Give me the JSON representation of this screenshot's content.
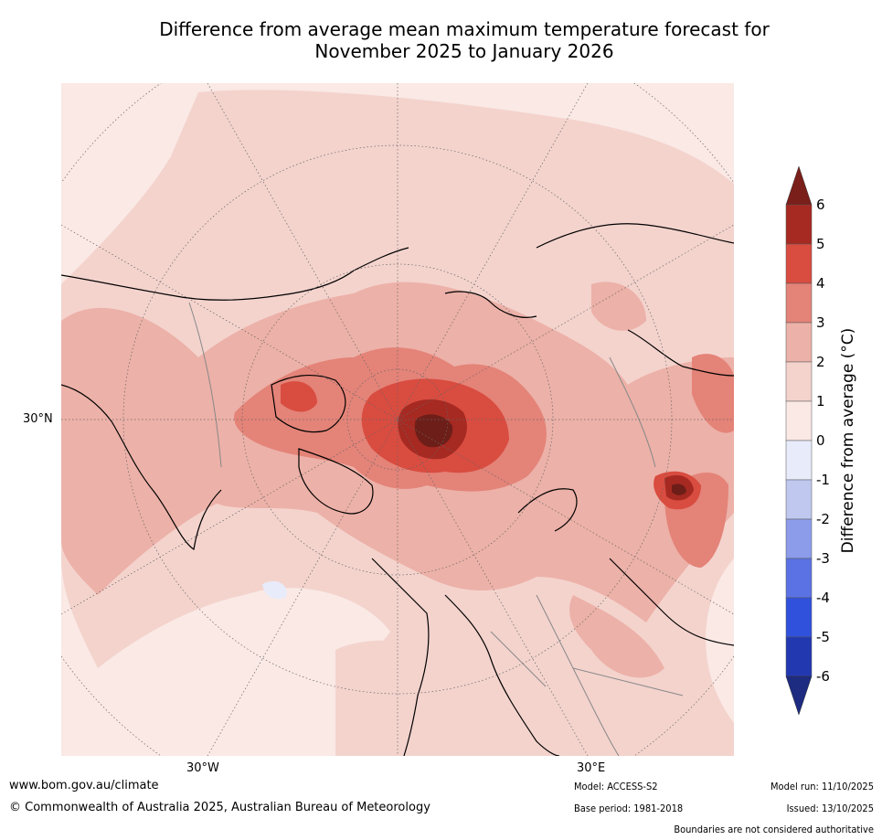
{
  "title_line1": "Difference from average mean maximum temperature forecast for",
  "title_line2": "November 2025 to January 2026",
  "map": {
    "labels": {
      "lat_30n": "30°N",
      "lon_30w": "30°W",
      "lon_30e": "30°E"
    },
    "colors": {
      "ocean_base": "#fae9e5",
      "band_0_1": "#fae9e5",
      "band_1_2": "#f4d3cd",
      "band_2_3": "#ecb1a8",
      "band_3_4": "#e48378",
      "band_4_5": "#d94c40",
      "band_5_6": "#a62a22",
      "band_6plus": "#6e1e18",
      "band_neg_0_1": "#e8ebfa"
    }
  },
  "colorbar": {
    "title": "Difference from average (°C)",
    "ticks": [
      "6",
      "5",
      "4",
      "3",
      "2",
      "1",
      "0",
      "-1",
      "-2",
      "-3",
      "-4",
      "-5",
      "-6"
    ],
    "colors_top_to_bottom": [
      "#7a1f1a",
      "#a62a22",
      "#d94c40",
      "#e48378",
      "#ecb1a8",
      "#f4d3cd",
      "#fae9e5",
      "#e8ebfa",
      "#c0c8f0",
      "#8c9ceb",
      "#5a72e3",
      "#3051dc",
      "#2138b0",
      "#1d2b80"
    ]
  },
  "footer": {
    "website": "www.bom.gov.au/climate",
    "copyright": "© Commonwealth of Australia 2025, Australian Bureau of Meteorology",
    "model": "Model: ACCESS-S2",
    "base_period": "Base period: 1981-2018",
    "model_run": "Model run: 11/10/2025",
    "issued": "Issued: 13/10/2025",
    "disclaimer": "Boundaries are not considered authoritative"
  }
}
